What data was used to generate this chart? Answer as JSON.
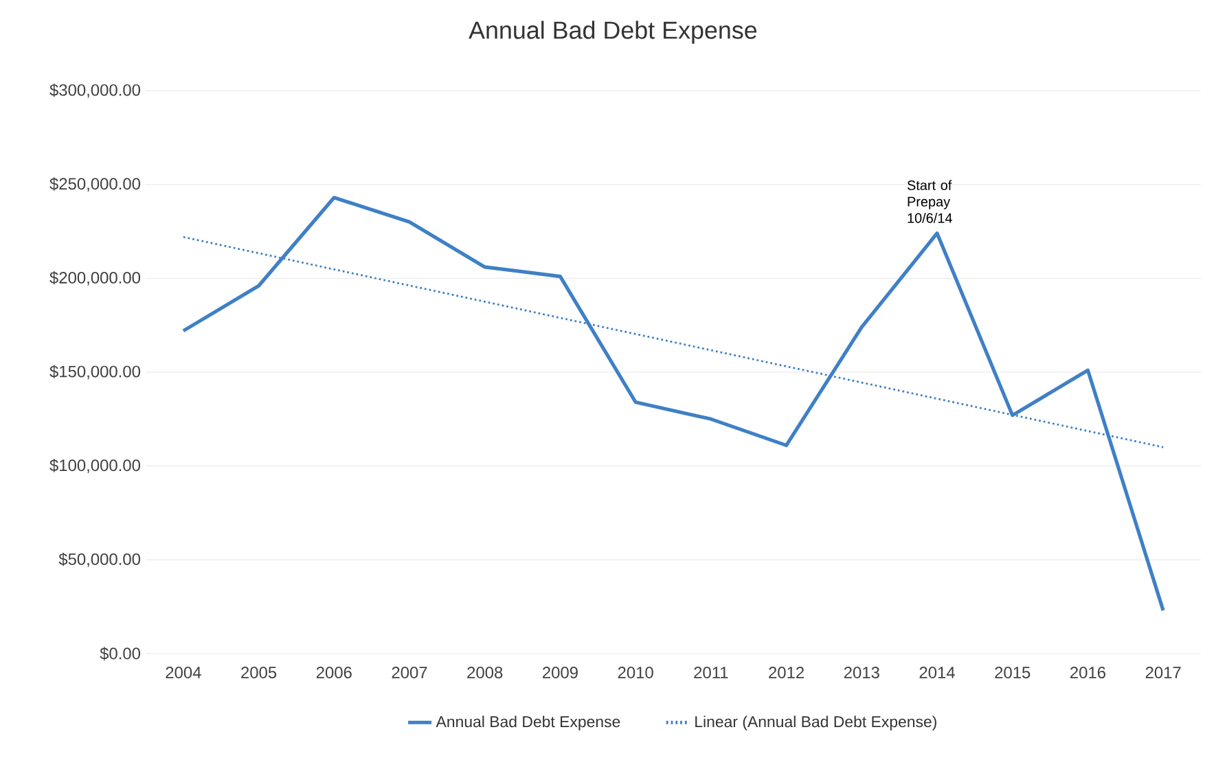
{
  "chart_data": {
    "type": "line",
    "title": "Annual Bad Debt Expense",
    "x": [
      2004,
      2005,
      2006,
      2007,
      2008,
      2009,
      2010,
      2011,
      2012,
      2013,
      2014,
      2015,
      2016,
      2017
    ],
    "xlim": [
      2003.5,
      2017.5
    ],
    "xticks": [
      2004,
      2005,
      2006,
      2007,
      2008,
      2009,
      2010,
      2011,
      2012,
      2013,
      2014,
      2015,
      2016,
      2017
    ],
    "ylim": [
      0,
      300000
    ],
    "yticks": [
      {
        "value": 0,
        "label": "$0.00"
      },
      {
        "value": 50000,
        "label": "$50,000.00"
      },
      {
        "value": 100000,
        "label": "$100,000.00"
      },
      {
        "value": 150000,
        "label": "$150,000.00"
      },
      {
        "value": 200000,
        "label": "$200,000.00"
      },
      {
        "value": 250000,
        "label": "$250,000.00"
      },
      {
        "value": 300000,
        "label": "$300,000.00"
      }
    ],
    "series": [
      {
        "name": "Annual Bad Debt Expense",
        "color": "#3f80c6",
        "line_style": "solid",
        "values": [
          172000,
          196000,
          243000,
          230000,
          206000,
          201000,
          134000,
          125000,
          111000,
          174000,
          224000,
          127000,
          151000,
          23000
        ]
      },
      {
        "name": "Linear (Annual Bad Debt Expense)",
        "color": "#3f80c6",
        "line_style": "dotted",
        "x": [
          2004,
          2017
        ],
        "values": [
          222000,
          110000
        ]
      }
    ],
    "annotations": [
      {
        "text": "Start of Prepay 10/6/14",
        "x": 2014,
        "y": 224000
      }
    ],
    "grid": "y",
    "legend": "bottom",
    "marker": "none"
  }
}
